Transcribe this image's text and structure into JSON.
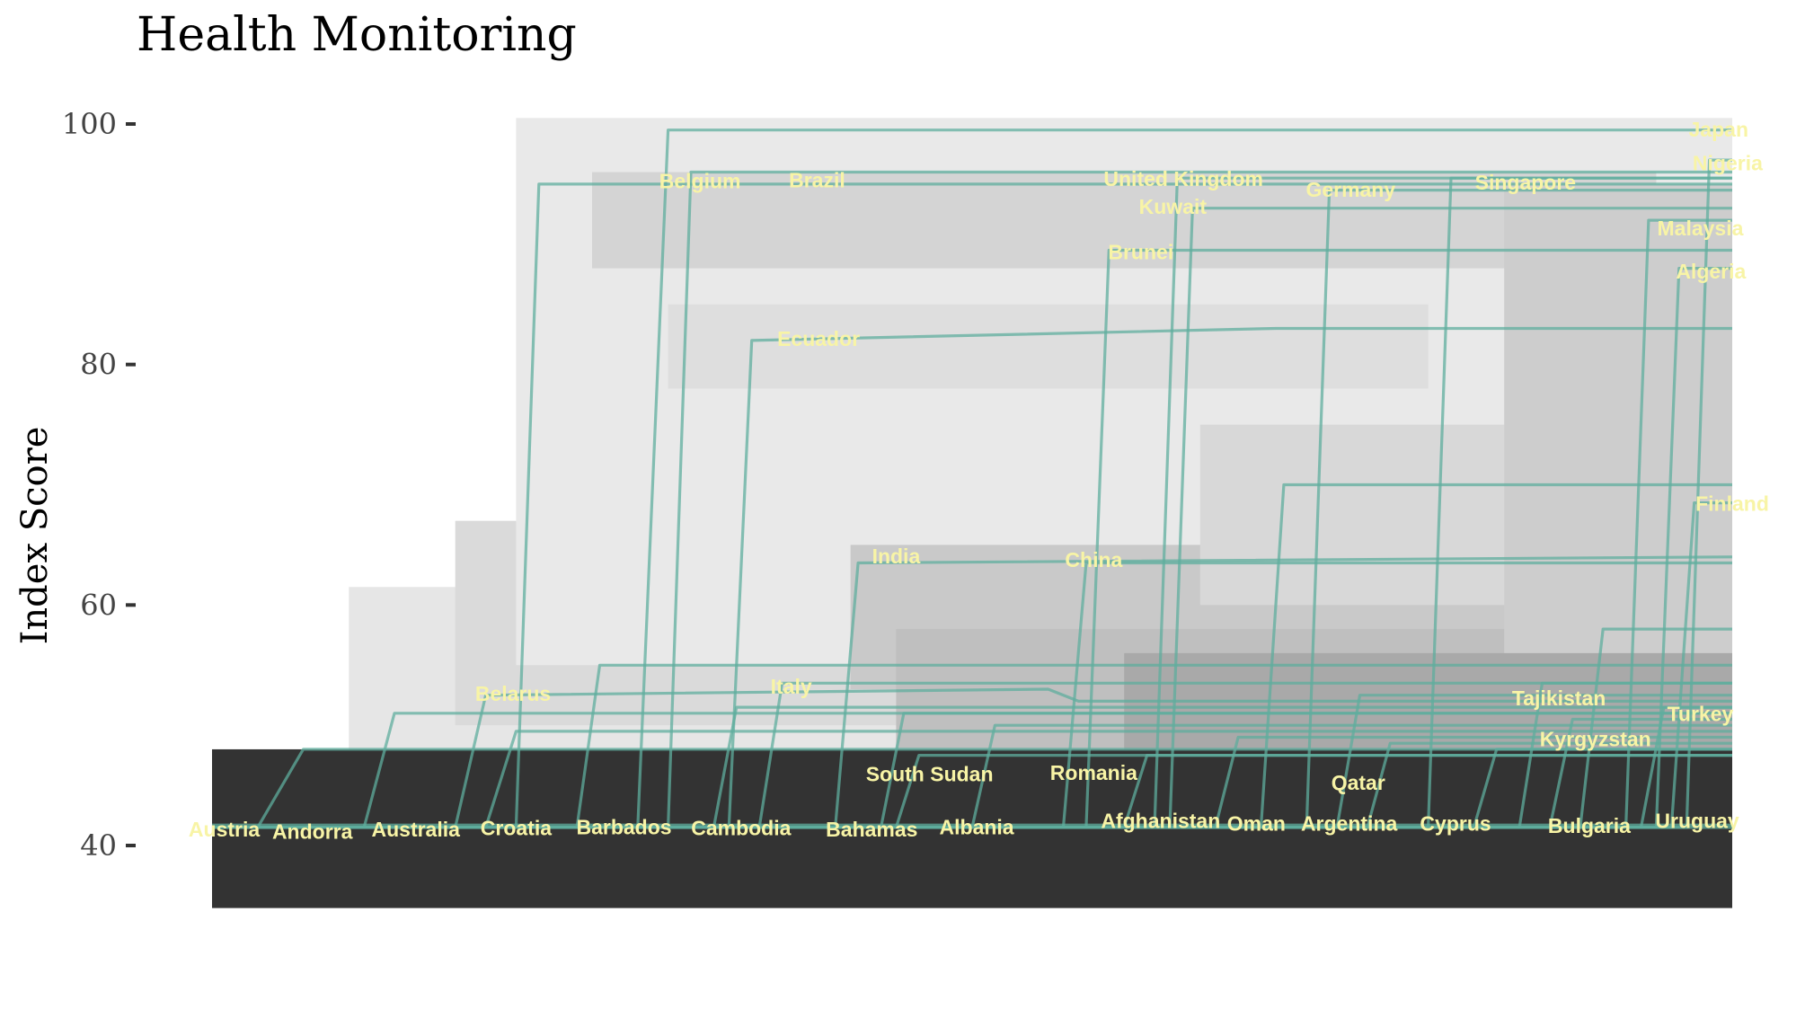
{
  "chart_data": {
    "type": "line",
    "title": "Health Monitoring",
    "xlabel": "",
    "ylabel": "Index Score",
    "ylim": [
      33,
      104
    ],
    "y_ticks": [
      40,
      60,
      80,
      100
    ],
    "grid": false,
    "legend": "none",
    "colors": {
      "series_line": "#5fae9e",
      "label_text": "#f8f4a6",
      "band_dark": "#333333",
      "band_light": "#dcdcdc"
    },
    "series": [
      {
        "name": "Austria",
        "x": [
          0.0,
          1.0
        ],
        "y": [
          41.7,
          41.7
        ]
      },
      {
        "name": "Andorra",
        "x": [
          0.0,
          0.03,
          0.06,
          1.0
        ],
        "y": [
          41.5,
          41.5,
          48.0,
          48.0
        ]
      },
      {
        "name": "Australia",
        "x": [
          0.0,
          0.1,
          0.12,
          1.0
        ],
        "y": [
          41.5,
          41.5,
          51.0,
          51.0
        ]
      },
      {
        "name": "Belarus",
        "x": [
          0.0,
          0.16,
          0.18,
          0.55,
          0.57,
          1.0
        ],
        "y": [
          41.5,
          41.5,
          52.5,
          53.0,
          52.0,
          52.0
        ]
      },
      {
        "name": "Croatia",
        "x": [
          0.0,
          0.18,
          0.2,
          1.0
        ],
        "y": [
          41.5,
          41.5,
          49.5,
          49.5
        ]
      },
      {
        "name": "Belgium",
        "x": [
          0.0,
          0.2,
          0.215,
          1.0
        ],
        "y": [
          41.5,
          41.5,
          95.0,
          95.0
        ]
      },
      {
        "name": "Barbados",
        "x": [
          0.0,
          0.24,
          0.255,
          1.0
        ],
        "y": [
          41.5,
          41.5,
          55.0,
          55.0
        ]
      },
      {
        "name": "Brazil",
        "x": [
          0.0,
          0.3,
          0.315,
          1.0
        ],
        "y": [
          41.5,
          41.5,
          96.0,
          96.0
        ]
      },
      {
        "name": "Cambodia",
        "x": [
          0.0,
          0.33,
          0.345,
          1.0
        ],
        "y": [
          41.5,
          41.5,
          51.5,
          51.5
        ]
      },
      {
        "name": "Ecuador",
        "x": [
          0.0,
          0.34,
          0.355,
          0.7,
          0.72,
          1.0
        ],
        "y": [
          41.5,
          41.5,
          82.0,
          83.0,
          83.0,
          83.0
        ]
      },
      {
        "name": "Italy",
        "x": [
          0.0,
          0.36,
          0.375,
          1.0
        ],
        "y": [
          41.5,
          41.5,
          53.5,
          53.5
        ]
      },
      {
        "name": "India",
        "x": [
          0.0,
          0.41,
          0.425,
          1.0
        ],
        "y": [
          41.5,
          41.5,
          63.5,
          64.0
        ]
      },
      {
        "name": "Bahamas",
        "x": [
          0.0,
          0.44,
          0.455,
          1.0
        ],
        "y": [
          41.5,
          41.5,
          51.0,
          51.0
        ]
      },
      {
        "name": "South Sudan",
        "x": [
          0.0,
          0.45,
          0.465,
          1.0
        ],
        "y": [
          41.5,
          41.5,
          47.5,
          47.5
        ]
      },
      {
        "name": "Albania",
        "x": [
          0.0,
          0.5,
          0.515,
          1.0
        ],
        "y": [
          41.5,
          41.5,
          50.0,
          50.0
        ]
      },
      {
        "name": "China",
        "x": [
          0.0,
          0.56,
          0.575,
          1.0
        ],
        "y": [
          41.5,
          41.5,
          63.5,
          63.5
        ]
      },
      {
        "name": "Brunei",
        "x": [
          0.0,
          0.575,
          0.59,
          1.0
        ],
        "y": [
          41.5,
          41.5,
          89.5,
          89.5
        ]
      },
      {
        "name": "Romania",
        "x": [
          0.0,
          0.6,
          0.615,
          1.0
        ],
        "y": [
          41.5,
          41.5,
          47.5,
          47.5
        ]
      },
      {
        "name": "United Kingdom",
        "x": [
          0.0,
          0.62,
          0.635,
          1.0
        ],
        "y": [
          41.5,
          41.5,
          95.5,
          95.5
        ]
      },
      {
        "name": "Kuwait",
        "x": [
          0.0,
          0.63,
          0.645,
          1.0
        ],
        "y": [
          41.5,
          41.5,
          93.0,
          93.0
        ]
      },
      {
        "name": "Afghanistan",
        "x": [
          0.0,
          0.66,
          0.675,
          1.0
        ],
        "y": [
          41.5,
          41.5,
          49.0,
          49.0
        ]
      },
      {
        "name": "Oman",
        "x": [
          0.0,
          0.69,
          0.705,
          1.0
        ],
        "y": [
          41.5,
          41.5,
          70.0,
          70.0
        ]
      },
      {
        "name": "Germany",
        "x": [
          0.0,
          0.72,
          0.735,
          1.0
        ],
        "y": [
          41.5,
          41.5,
          94.5,
          94.5
        ]
      },
      {
        "name": "Argentina",
        "x": [
          0.0,
          0.74,
          0.755,
          1.0
        ],
        "y": [
          41.5,
          41.5,
          52.5,
          52.5
        ]
      },
      {
        "name": "Qatar",
        "x": [
          0.0,
          0.76,
          0.775,
          1.0
        ],
        "y": [
          41.5,
          41.5,
          48.5,
          48.5
        ]
      },
      {
        "name": "Singapore",
        "x": [
          0.0,
          0.8,
          0.815,
          1.0
        ],
        "y": [
          41.5,
          41.5,
          95.5,
          95.5
        ]
      },
      {
        "name": "Cyprus",
        "x": [
          0.0,
          0.83,
          0.845,
          1.0
        ],
        "y": [
          41.5,
          41.5,
          48.0,
          48.0
        ]
      },
      {
        "name": "Tajikistan",
        "x": [
          0.0,
          0.86,
          0.875,
          1.0
        ],
        "y": [
          41.5,
          41.5,
          53.5,
          53.5
        ]
      },
      {
        "name": "Kyrgyzstan",
        "x": [
          0.0,
          0.88,
          0.895,
          1.0
        ],
        "y": [
          41.5,
          41.5,
          50.5,
          50.5
        ]
      },
      {
        "name": "Bulgaria",
        "x": [
          0.0,
          0.9,
          0.915,
          1.0
        ],
        "y": [
          41.5,
          41.5,
          58.0,
          58.0
        ]
      },
      {
        "name": "Malaysia",
        "x": [
          0.0,
          0.93,
          0.945,
          1.0
        ],
        "y": [
          41.5,
          41.5,
          92.0,
          92.0
        ]
      },
      {
        "name": "Turkey",
        "x": [
          0.0,
          0.94,
          0.955,
          1.0
        ],
        "y": [
          41.5,
          41.5,
          51.5,
          51.5
        ]
      },
      {
        "name": "Algeria",
        "x": [
          0.0,
          0.95,
          0.965,
          1.0
        ],
        "y": [
          41.5,
          41.5,
          88.0,
          88.0
        ]
      },
      {
        "name": "Finland",
        "x": [
          0.0,
          0.96,
          0.975,
          1.0
        ],
        "y": [
          41.5,
          41.5,
          68.5,
          68.5
        ]
      },
      {
        "name": "Japan",
        "x": [
          0.0,
          0.28,
          0.3,
          1.0
        ],
        "y": [
          41.5,
          41.5,
          99.5,
          99.5
        ]
      },
      {
        "name": "Nigeria",
        "x": [
          0.0,
          0.97,
          0.985,
          1.0
        ],
        "y": [
          41.5,
          41.5,
          97.0,
          97.0
        ]
      },
      {
        "name": "Uruguay",
        "x": [
          0.0,
          1.0
        ],
        "y": [
          41.5,
          41.5
        ]
      }
    ],
    "labels": [
      {
        "text": "Austria",
        "x": 0.008,
        "y": 41.2
      },
      {
        "text": "Andorra",
        "x": 0.066,
        "y": 41.0
      },
      {
        "text": "Australia",
        "x": 0.134,
        "y": 41.2
      },
      {
        "text": "Croatia",
        "x": 0.2,
        "y": 41.3
      },
      {
        "text": "Barbados",
        "x": 0.271,
        "y": 41.4
      },
      {
        "text": "Cambodia",
        "x": 0.348,
        "y": 41.3
      },
      {
        "text": "Bahamas",
        "x": 0.434,
        "y": 41.2
      },
      {
        "text": "Albania",
        "x": 0.503,
        "y": 41.4
      },
      {
        "text": "Afghanistan",
        "x": 0.624,
        "y": 41.9
      },
      {
        "text": "Oman",
        "x": 0.687,
        "y": 41.7
      },
      {
        "text": "Argentina",
        "x": 0.748,
        "y": 41.7
      },
      {
        "text": "Cyprus",
        "x": 0.818,
        "y": 41.7
      },
      {
        "text": "Bulgaria",
        "x": 0.906,
        "y": 41.5
      },
      {
        "text": "Uruguay",
        "x": 0.977,
        "y": 41.9
      },
      {
        "text": "South Sudan",
        "x": 0.472,
        "y": 45.8
      },
      {
        "text": "Romania",
        "x": 0.58,
        "y": 45.9
      },
      {
        "text": "Qatar",
        "x": 0.754,
        "y": 45.1
      },
      {
        "text": "Belarus",
        "x": 0.198,
        "y": 52.5
      },
      {
        "text": "Italy",
        "x": 0.381,
        "y": 53.1
      },
      {
        "text": "Tajikistan",
        "x": 0.886,
        "y": 52.1
      },
      {
        "text": "Kyrgyzstan",
        "x": 0.91,
        "y": 48.7
      },
      {
        "text": "Turkey",
        "x": 0.979,
        "y": 50.8
      },
      {
        "text": "India",
        "x": 0.45,
        "y": 63.9
      },
      {
        "text": "China",
        "x": 0.58,
        "y": 63.6
      },
      {
        "text": "Finland",
        "x": 1.0,
        "y": 68.3
      },
      {
        "text": "Ecuador",
        "x": 0.399,
        "y": 82.0
      },
      {
        "text": "Brunei",
        "x": 0.611,
        "y": 89.2
      },
      {
        "text": "Algeria",
        "x": 0.986,
        "y": 87.6
      },
      {
        "text": "Malaysia",
        "x": 0.979,
        "y": 91.2
      },
      {
        "text": "Kuwait",
        "x": 0.632,
        "y": 93.0
      },
      {
        "text": "Belgium",
        "x": 0.321,
        "y": 95.1
      },
      {
        "text": "Brazil",
        "x": 0.398,
        "y": 95.2
      },
      {
        "text": "United Kingdom",
        "x": 0.639,
        "y": 95.3
      },
      {
        "text": "Germany",
        "x": 0.749,
        "y": 94.4
      },
      {
        "text": "Singapore",
        "x": 0.864,
        "y": 95.0
      },
      {
        "text": "Nigeria",
        "x": 0.997,
        "y": 96.6
      },
      {
        "text": "Japan",
        "x": 0.991,
        "y": 99.4
      }
    ]
  }
}
